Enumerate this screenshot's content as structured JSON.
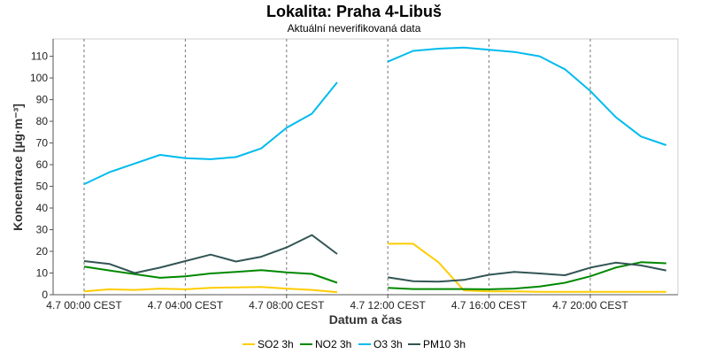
{
  "chart_data": {
    "type": "line",
    "title": "Lokalita: Praha 4-Libuš",
    "subtitle": "Aktuální neverifikovaná data",
    "xlabel": "Datum a čas",
    "ylabel": "Koncentrace [µg·m⁻³]",
    "xlim": [
      0,
      23.7
    ],
    "ylim": [
      0,
      118
    ],
    "yticks": [
      0,
      10,
      20,
      30,
      40,
      50,
      60,
      70,
      80,
      90,
      100,
      110
    ],
    "xticks": [
      {
        "x": 0,
        "label": "4.7 00:00 CEST"
      },
      {
        "x": 4,
        "label": "4.7 04:00 CEST"
      },
      {
        "x": 8,
        "label": "4.7 08:00 CEST"
      },
      {
        "x": 12,
        "label": "4.7 12:00 CEST"
      },
      {
        "x": 16,
        "label": "4.7 16:00 CEST"
      },
      {
        "x": 20,
        "label": "4.7 20:00 CEST"
      }
    ],
    "x": [
      0,
      1,
      2,
      3,
      4,
      5,
      6,
      7,
      8,
      9,
      10,
      11,
      12,
      13,
      14,
      15,
      16,
      17,
      18,
      19,
      20,
      21,
      22,
      23
    ],
    "series": [
      {
        "name": "SO2 3h",
        "color": "#ffcc00",
        "values": [
          1.5,
          2.5,
          2.2,
          2.8,
          2.5,
          3.2,
          3.4,
          3.6,
          2.8,
          2.2,
          1.2,
          null,
          23.5,
          23.5,
          15,
          2,
          1.5,
          1.5,
          1.3,
          1.3,
          1.3,
          1.3,
          1.3,
          1.3
        ]
      },
      {
        "name": "NO2 3h",
        "color": "#008800",
        "values": [
          13,
          11.2,
          9.5,
          7.8,
          8.5,
          9.8,
          10.5,
          11.3,
          10.3,
          9.6,
          5.5,
          null,
          3.2,
          2.6,
          2.6,
          2.6,
          2.5,
          2.8,
          3.8,
          5.5,
          8.5,
          12.5,
          15,
          14.5
        ]
      },
      {
        "name": "O3 3h",
        "color": "#00bbee",
        "values": [
          51,
          56.5,
          60.5,
          64.5,
          63,
          62.5,
          63.5,
          67.5,
          77,
          83.5,
          98,
          null,
          107.5,
          112.5,
          113.5,
          114,
          113,
          112,
          110,
          104,
          94,
          82,
          73,
          69
        ]
      },
      {
        "name": "PM10 3h",
        "color": "#335555",
        "values": [
          15.5,
          14.2,
          10,
          12.5,
          15.5,
          18.5,
          15.3,
          17.5,
          21.8,
          27.5,
          18.8,
          null,
          8,
          6.2,
          6,
          6.8,
          9.2,
          10.5,
          9.8,
          9,
          12.5,
          14.8,
          13.5,
          11.2
        ]
      }
    ],
    "grid": true,
    "legend_position": "bottom"
  }
}
